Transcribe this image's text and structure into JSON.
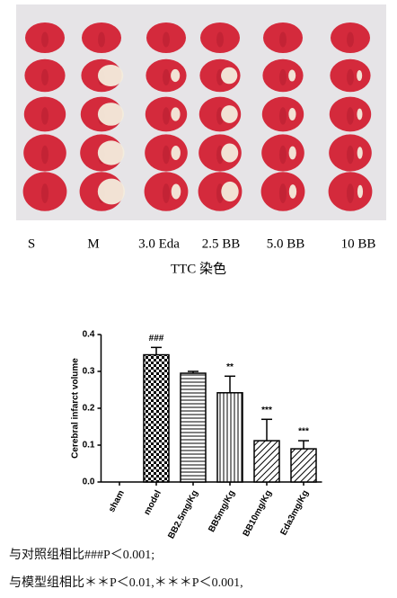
{
  "figure": {
    "photo_labels": [
      "S",
      "M",
      "3.0 Eda",
      "2.5 BB",
      "5.0 BB",
      "10 BB"
    ],
    "photo_caption": "TTC 染色"
  },
  "chart_data": {
    "type": "bar",
    "ylabel": "Cerebral infarct volume",
    "categories": [
      "sham",
      "model",
      "BB2.5mg/Kg",
      "BB5mg/Kg",
      "BB10mg/Kg",
      "Eda3mg/Kg"
    ],
    "values": [
      0,
      0.345,
      0.295,
      0.242,
      0.112,
      0.09
    ],
    "errors": [
      0,
      0.02,
      0.005,
      0.045,
      0.058,
      0.022
    ],
    "annotations": [
      null,
      "###",
      null,
      "**",
      "***",
      "***"
    ],
    "ylim": [
      0,
      0.4
    ],
    "yticks": [
      {
        "value": 0,
        "label": "0.0"
      },
      0.1,
      0.2,
      0.3,
      0.4
    ],
    "grid": false,
    "color": "#000000"
  },
  "footnotes": [
    "与对照组相比###P＜0.001;",
    "与模型组相比＊＊P＜0.01,＊＊＊P＜0.001,"
  ]
}
